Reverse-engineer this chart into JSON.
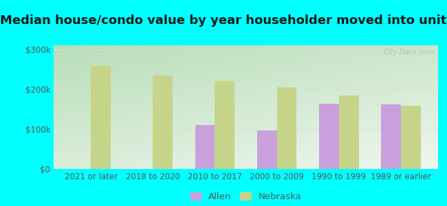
{
  "title": "Median house/condo value by year householder moved into unit",
  "categories": [
    "2021 or later",
    "2018 to 2020",
    "2010 to 2017",
    "2000 to 2009",
    "1990 to 1999",
    "1989 or earlier"
  ],
  "allen_values": [
    null,
    null,
    110000,
    97000,
    163000,
    162000
  ],
  "nebraska_values": [
    258000,
    235000,
    220000,
    205000,
    185000,
    158000
  ],
  "allen_color": "#c9a0dc",
  "nebraska_color": "#c5d488",
  "background_outer": "#00ffff",
  "ylim": [
    0,
    310000
  ],
  "yticks": [
    0,
    100000,
    200000,
    300000
  ],
  "ytick_labels": [
    "$0",
    "$100k",
    "$200k",
    "$300k"
  ],
  "watermark": "City-Data.com",
  "legend_labels": [
    "Allen",
    "Nebraska"
  ],
  "bar_width": 0.32,
  "title_fontsize": 13,
  "tick_fontsize": 8.5,
  "legend_fontsize": 9.5
}
